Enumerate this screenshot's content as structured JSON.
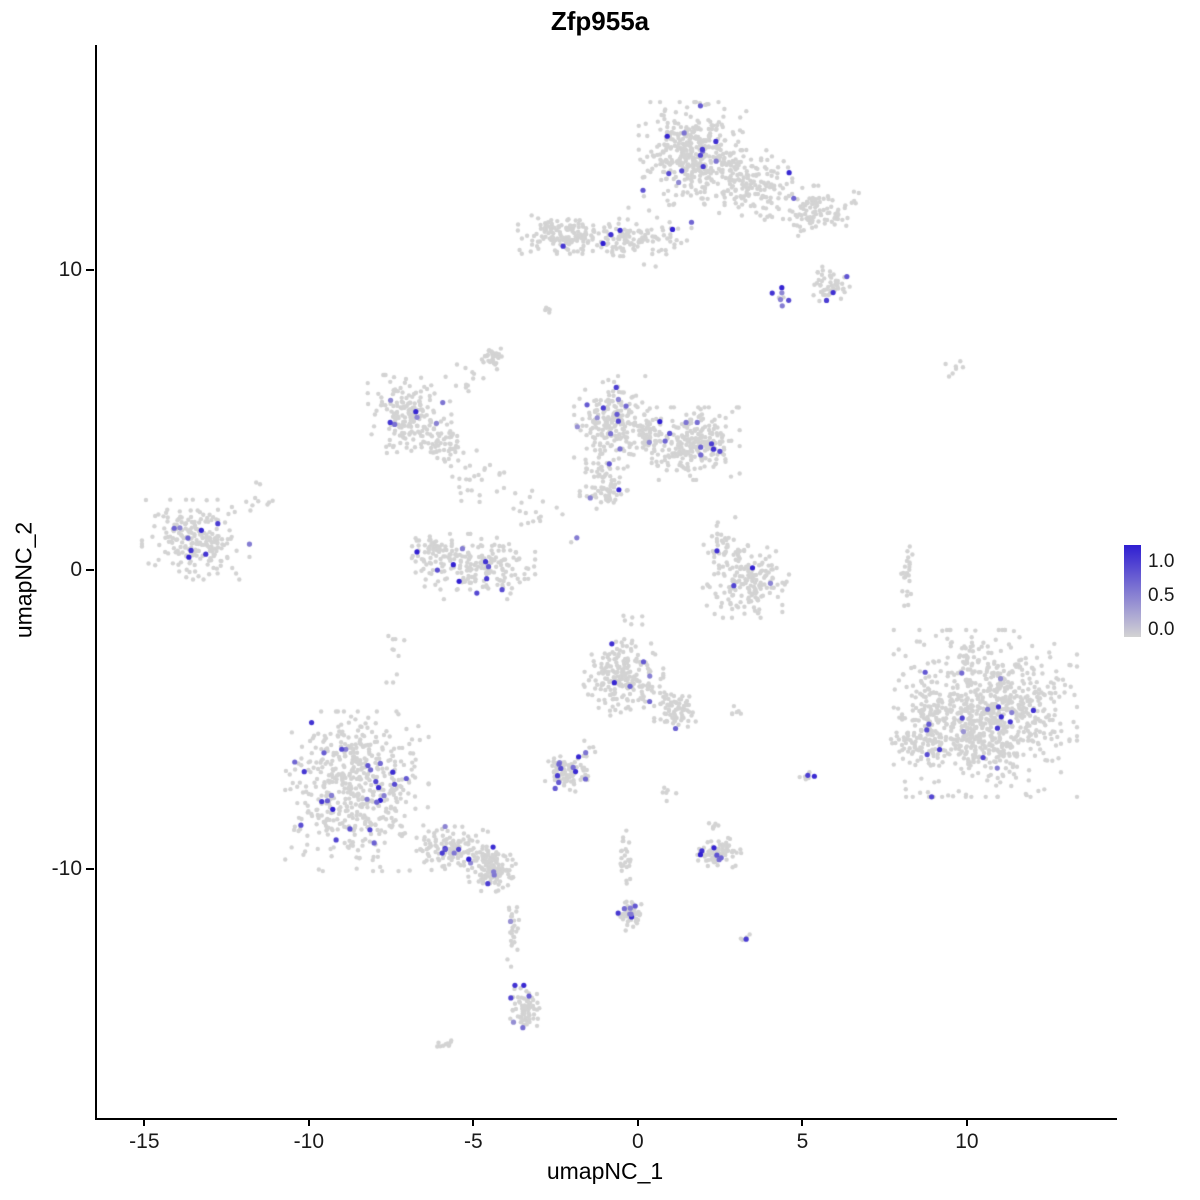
{
  "chart_data": {
    "type": "scatter",
    "title": "Zfp955a",
    "xlabel": "umapNC_1",
    "ylabel": "umapNC_2",
    "xlim": [
      -16.5,
      14.5
    ],
    "ylim": [
      -18.3,
      17.5
    ],
    "grid": false,
    "x_ticks": [
      {
        "value": -15,
        "label": "-15"
      },
      {
        "value": -10,
        "label": "-10"
      },
      {
        "value": -5,
        "label": "-5"
      },
      {
        "value": 0,
        "label": "0"
      },
      {
        "value": 5,
        "label": "5"
      },
      {
        "value": 10,
        "label": "10"
      }
    ],
    "y_ticks": [
      {
        "value": 10,
        "label": "10"
      },
      {
        "value": 0,
        "label": "0"
      },
      {
        "value": -10,
        "label": "-10"
      }
    ],
    "legend": {
      "position": "right",
      "ticks": [
        {
          "value": 1.0,
          "label": "1.0"
        },
        {
          "value": 0.5,
          "label": "0.5"
        },
        {
          "value": 0.0,
          "label": "0.0"
        }
      ],
      "scale_min": -0.1,
      "scale_max": 1.25
    },
    "colors": {
      "low": "#d3d3d3",
      "high": "#2f1ed2"
    },
    "point_radius": 2.2,
    "seed": 42,
    "clusters": [
      {
        "name": "top-main",
        "cx": 1.6,
        "cy": 13.9,
        "rx": 1.35,
        "ry": 1.4,
        "n": 400,
        "expr": 0.025
      },
      {
        "name": "top-main-east",
        "cx": 3.3,
        "cy": 12.9,
        "rx": 1.1,
        "ry": 0.9,
        "n": 150,
        "expr": 0.02
      },
      {
        "name": "top-arm-right",
        "cx": 5.2,
        "cy": 11.9,
        "rx": 1.2,
        "ry": 0.75,
        "n": 110,
        "expr": 0.02
      },
      {
        "name": "top-band-west",
        "cx": -2.2,
        "cy": 11.2,
        "rx": 1.3,
        "ry": 0.55,
        "n": 150,
        "expr": 0.025
      },
      {
        "name": "top-band-mid",
        "cx": -0.5,
        "cy": 11.0,
        "rx": 0.8,
        "ry": 0.45,
        "n": 70,
        "expr": 0.02
      },
      {
        "name": "top-connector",
        "cx": 0.6,
        "cy": 11.2,
        "rx": 0.8,
        "ry": 0.9,
        "n": 45,
        "expr": 0.03
      },
      {
        "name": "right-knot",
        "cx": 5.7,
        "cy": 9.5,
        "rx": 0.6,
        "ry": 0.5,
        "n": 50,
        "expr": 0.06
      },
      {
        "name": "purple-pair",
        "cx": 4.3,
        "cy": 9.1,
        "rx": 0.25,
        "ry": 0.25,
        "n": 8,
        "expr": 0.3
      },
      {
        "name": "dot-high-mid",
        "cx": -2.8,
        "cy": 8.7,
        "rx": 0.18,
        "ry": 0.2,
        "n": 5,
        "expr": 0.25
      },
      {
        "name": "knot-upper-mid",
        "cx": -4.5,
        "cy": 7.1,
        "rx": 0.3,
        "ry": 0.4,
        "n": 30,
        "expr": 0
      },
      {
        "name": "sparse-upper-mid",
        "cx": -5.3,
        "cy": 6.3,
        "rx": 0.5,
        "ry": 0.45,
        "n": 12,
        "expr": 0
      },
      {
        "name": "mid-west",
        "cx": -7.0,
        "cy": 5.1,
        "rx": 1.05,
        "ry": 1.15,
        "n": 190,
        "expr": 0.03
      },
      {
        "name": "mid-west-tail",
        "cx": -6.0,
        "cy": 4.1,
        "rx": 0.6,
        "ry": 0.5,
        "n": 50,
        "expr": 0.02
      },
      {
        "name": "sparse-diag-a",
        "cx": -5.0,
        "cy": 3.0,
        "rx": 1.0,
        "ry": 0.8,
        "n": 28,
        "expr": 0
      },
      {
        "name": "sparse-diag-b",
        "cx": -3.2,
        "cy": 1.9,
        "rx": 0.7,
        "ry": 0.6,
        "n": 15,
        "expr": 0
      },
      {
        "name": "central-north",
        "cx": -0.85,
        "cy": 5.0,
        "rx": 0.95,
        "ry": 1.2,
        "n": 200,
        "expr": 0.03
      },
      {
        "name": "central-bridge",
        "cx": 0.2,
        "cy": 4.4,
        "rx": 0.6,
        "ry": 0.7,
        "n": 60,
        "expr": 0.02
      },
      {
        "name": "central-east",
        "cx": 1.7,
        "cy": 4.2,
        "rx": 1.1,
        "ry": 1.0,
        "n": 240,
        "expr": 0.03
      },
      {
        "name": "central-south",
        "cx": -1.1,
        "cy": 2.9,
        "rx": 0.6,
        "ry": 0.8,
        "n": 80,
        "expr": 0.02
      },
      {
        "name": "purple-dot-mid",
        "cx": -2.0,
        "cy": 1.0,
        "rx": 0.15,
        "ry": 0.15,
        "n": 3,
        "expr": 0.5
      },
      {
        "name": "far-west",
        "cx": -13.5,
        "cy": 1.0,
        "rx": 1.35,
        "ry": 1.1,
        "n": 220,
        "expr": 0.03
      },
      {
        "name": "far-west-outliers",
        "cx": -11.7,
        "cy": 2.3,
        "rx": 0.6,
        "ry": 0.5,
        "n": 10,
        "expr": 0.05
      },
      {
        "name": "southwest-mid",
        "cx": -5.0,
        "cy": 0.1,
        "rx": 1.5,
        "ry": 0.9,
        "n": 200,
        "expr": 0.02
      },
      {
        "name": "southwest-mid-tip",
        "cx": -6.3,
        "cy": 0.7,
        "rx": 0.6,
        "ry": 0.5,
        "n": 50,
        "expr": 0.03
      },
      {
        "name": "east-crescent",
        "cx": 3.2,
        "cy": -0.4,
        "rx": 1.1,
        "ry": 1.0,
        "n": 180,
        "expr": 0.02
      },
      {
        "name": "east-crescent-top",
        "cx": 2.5,
        "cy": 0.9,
        "rx": 0.5,
        "ry": 0.7,
        "n": 30,
        "expr": 0.08
      },
      {
        "name": "center-low",
        "cx": -0.5,
        "cy": -3.6,
        "rx": 1.0,
        "ry": 1.05,
        "n": 220,
        "expr": 0.05
      },
      {
        "name": "center-low-tail",
        "cx": 1.1,
        "cy": -4.7,
        "rx": 0.55,
        "ry": 0.5,
        "n": 70,
        "expr": 0.04
      },
      {
        "name": "purple-dot-low",
        "cx": 2.9,
        "cy": -4.8,
        "rx": 0.2,
        "ry": 0.2,
        "n": 6,
        "expr": 0.35
      },
      {
        "name": "big-east",
        "cx": 10.5,
        "cy": -4.8,
        "rx": 2.3,
        "ry": 2.3,
        "n": 900,
        "expr": 0.016
      },
      {
        "name": "big-east-west-lobe",
        "cx": 8.6,
        "cy": -5.5,
        "rx": 0.8,
        "ry": 1.1,
        "n": 100,
        "expr": 0.04
      },
      {
        "name": "east-trail",
        "cx": 8.1,
        "cy": -0.1,
        "rx": 0.15,
        "ry": 1.0,
        "n": 24,
        "expr": 0
      },
      {
        "name": "east-pair-high",
        "cx": 9.5,
        "cy": 6.7,
        "rx": 0.3,
        "ry": 0.25,
        "n": 7,
        "expr": 0
      },
      {
        "name": "southwest-big",
        "cx": -8.6,
        "cy": -7.4,
        "rx": 1.8,
        "ry": 2.2,
        "n": 550,
        "expr": 0.05
      },
      {
        "name": "southwest-big-tail",
        "cx": -5.7,
        "cy": -9.3,
        "rx": 0.9,
        "ry": 0.6,
        "n": 130,
        "expr": 0.04
      },
      {
        "name": "knot-south",
        "cx": -4.5,
        "cy": -10.0,
        "rx": 0.6,
        "ry": 0.65,
        "n": 140,
        "expr": 0.03
      },
      {
        "name": "trail-south",
        "cx": -3.85,
        "cy": -12.1,
        "rx": 0.22,
        "ry": 0.95,
        "n": 26,
        "expr": 0.06
      },
      {
        "name": "knot-far-south",
        "cx": -3.5,
        "cy": -14.6,
        "rx": 0.4,
        "ry": 0.6,
        "n": 70,
        "expr": 0.06
      },
      {
        "name": "tiny-far-south",
        "cx": -5.9,
        "cy": -15.8,
        "rx": 0.3,
        "ry": 0.2,
        "n": 10,
        "expr": 0
      },
      {
        "name": "small-mid-low",
        "cx": -2.2,
        "cy": -6.8,
        "rx": 0.6,
        "ry": 0.5,
        "n": 85,
        "expr": 0.1
      },
      {
        "name": "small-east-low",
        "cx": 2.4,
        "cy": -9.5,
        "rx": 0.6,
        "ry": 0.45,
        "n": 80,
        "expr": 0.05
      },
      {
        "name": "trail-center-south",
        "cx": -0.45,
        "cy": -9.8,
        "rx": 0.25,
        "ry": 0.9,
        "n": 25,
        "expr": 0.03
      },
      {
        "name": "knot-center-south",
        "cx": -0.3,
        "cy": -11.5,
        "rx": 0.3,
        "ry": 0.45,
        "n": 55,
        "expr": 0.15
      },
      {
        "name": "pair-east-low",
        "cx": 5.0,
        "cy": -6.9,
        "rx": 0.25,
        "ry": 0.3,
        "n": 7,
        "expr": 0.3
      },
      {
        "name": "dot-east-deep",
        "cx": 3.3,
        "cy": -12.3,
        "rx": 0.2,
        "ry": 0.25,
        "n": 5,
        "expr": 0.2
      },
      {
        "name": "dot-east-mid",
        "cx": 2.2,
        "cy": -8.6,
        "rx": 0.2,
        "ry": 0.2,
        "n": 6,
        "expr": 0
      },
      {
        "name": "sparse-west-low",
        "cx": -7.5,
        "cy": -2.8,
        "rx": 0.3,
        "ry": 0.8,
        "n": 10,
        "expr": 0
      },
      {
        "name": "sparse-mid-low",
        "cx": -1.6,
        "cy": -6.1,
        "rx": 0.4,
        "ry": 0.5,
        "n": 10,
        "expr": 0.1
      },
      {
        "name": "dot-center-low",
        "cx": 0.8,
        "cy": -7.4,
        "rx": 0.25,
        "ry": 0.3,
        "n": 6,
        "expr": 0
      },
      {
        "name": "sparse-center",
        "cx": -0.2,
        "cy": -1.6,
        "rx": 0.5,
        "ry": 0.4,
        "n": 6,
        "expr": 0
      }
    ]
  }
}
